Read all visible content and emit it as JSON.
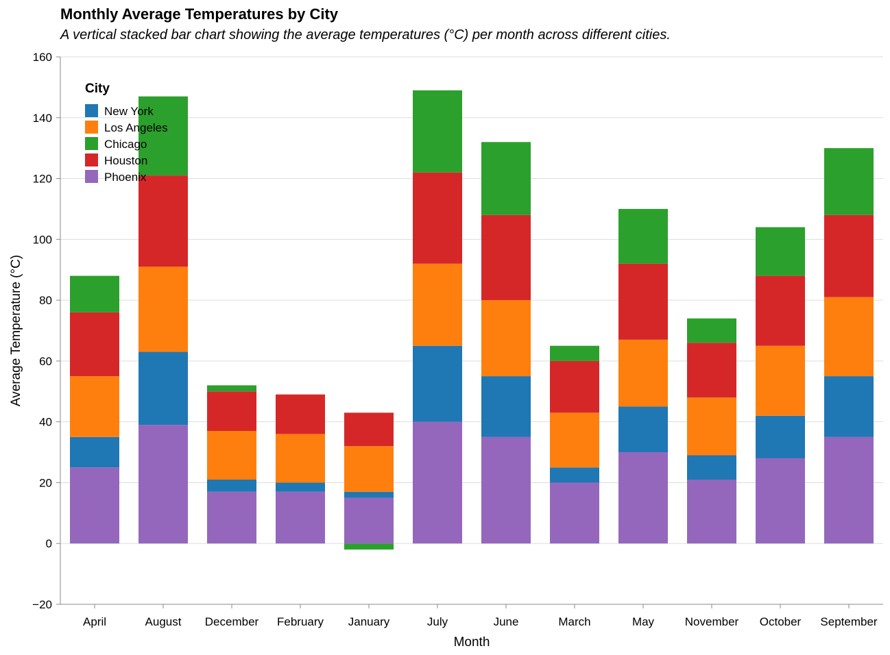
{
  "chart_data": {
    "type": "bar",
    "stacked": true,
    "title": "Monthly Average Temperatures by City",
    "subtitle": "A vertical stacked bar chart showing the average temperatures (°C) per month across different cities.",
    "xlabel": "Month",
    "ylabel": "Average Temperature (°C)",
    "ylim": [
      -20,
      160
    ],
    "yticks": [
      -20,
      0,
      20,
      40,
      60,
      80,
      100,
      120,
      140,
      160
    ],
    "grid": true,
    "legend": {
      "title": "City",
      "placement": "top-left"
    },
    "categories": [
      "April",
      "August",
      "December",
      "February",
      "January",
      "July",
      "June",
      "March",
      "May",
      "November",
      "October",
      "September"
    ],
    "series": [
      {
        "name": "Phoenix",
        "color": "#9467bd",
        "values": [
          25,
          39,
          17,
          17,
          15,
          40,
          35,
          20,
          30,
          21,
          28,
          35
        ]
      },
      {
        "name": "New York",
        "color": "#1f77b4",
        "values": [
          10,
          24,
          4,
          3,
          2,
          25,
          20,
          5,
          15,
          8,
          14,
          20
        ]
      },
      {
        "name": "Los Angeles",
        "color": "#ff7f0e",
        "values": [
          20,
          28,
          16,
          16,
          15,
          27,
          25,
          18,
          22,
          19,
          23,
          26
        ]
      },
      {
        "name": "Houston",
        "color": "#d62728",
        "values": [
          21,
          30,
          13,
          13,
          11,
          30,
          28,
          17,
          25,
          18,
          23,
          27
        ]
      },
      {
        "name": "Chicago",
        "color": "#2ca02c",
        "values": [
          12,
          26,
          2,
          0,
          -2,
          27,
          24,
          5,
          18,
          8,
          16,
          22
        ]
      }
    ],
    "legend_order": [
      "New York",
      "Los Angeles",
      "Chicago",
      "Houston",
      "Phoenix"
    ]
  }
}
